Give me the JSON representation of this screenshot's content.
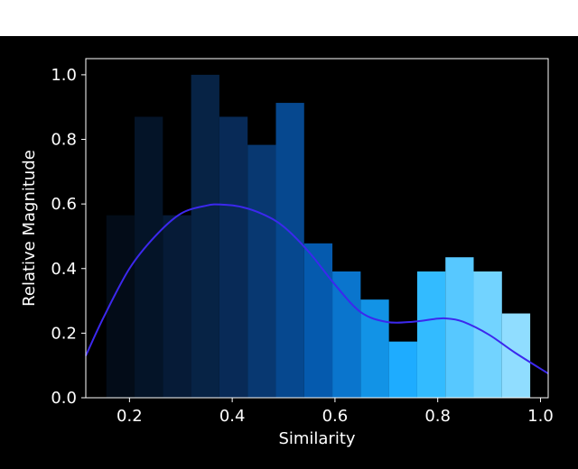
{
  "chart_data": {
    "type": "bar",
    "title": "",
    "xlabel": "Similarity",
    "ylabel": "Relative Magnitude",
    "xlim": [
      0.115,
      1.015
    ],
    "ylim": [
      0.0,
      1.05
    ],
    "xticks": [
      0.2,
      0.4,
      0.6,
      0.8,
      1.0
    ],
    "yticks": [
      0.0,
      0.2,
      0.4,
      0.6,
      0.8,
      1.0
    ],
    "bin_edges": [
      0.155,
      0.21,
      0.265,
      0.32,
      0.375,
      0.43,
      0.485,
      0.54,
      0.595,
      0.65,
      0.705,
      0.76,
      0.815,
      0.87,
      0.925,
      0.98
    ],
    "values": [
      0.565,
      0.87,
      0.565,
      1.0,
      0.87,
      0.783,
      0.913,
      0.478,
      0.391,
      0.304,
      0.174,
      0.391,
      0.435,
      0.391,
      0.261
    ],
    "bar_colors": [
      "#030c18",
      "#041428",
      "#061b37",
      "#072345",
      "#082a57",
      "#083871",
      "#06488f",
      "#055aae",
      "#0a75cd",
      "#1293e6",
      "#1eacff",
      "#33bbff",
      "#57c8ff",
      "#72d3ff",
      "#90ddff"
    ],
    "density_curve": {
      "color": "#3c28ee",
      "x": [
        0.115,
        0.15,
        0.2,
        0.25,
        0.3,
        0.35,
        0.38,
        0.42,
        0.46,
        0.5,
        0.55,
        0.6,
        0.65,
        0.7,
        0.75,
        0.8,
        0.82,
        0.85,
        0.9,
        0.95,
        1.015
      ],
      "y": [
        0.13,
        0.25,
        0.4,
        0.5,
        0.57,
        0.595,
        0.598,
        0.59,
        0.568,
        0.53,
        0.45,
        0.35,
        0.265,
        0.235,
        0.235,
        0.245,
        0.245,
        0.235,
        0.195,
        0.14,
        0.075
      ]
    },
    "grid": false,
    "legend": "none"
  }
}
